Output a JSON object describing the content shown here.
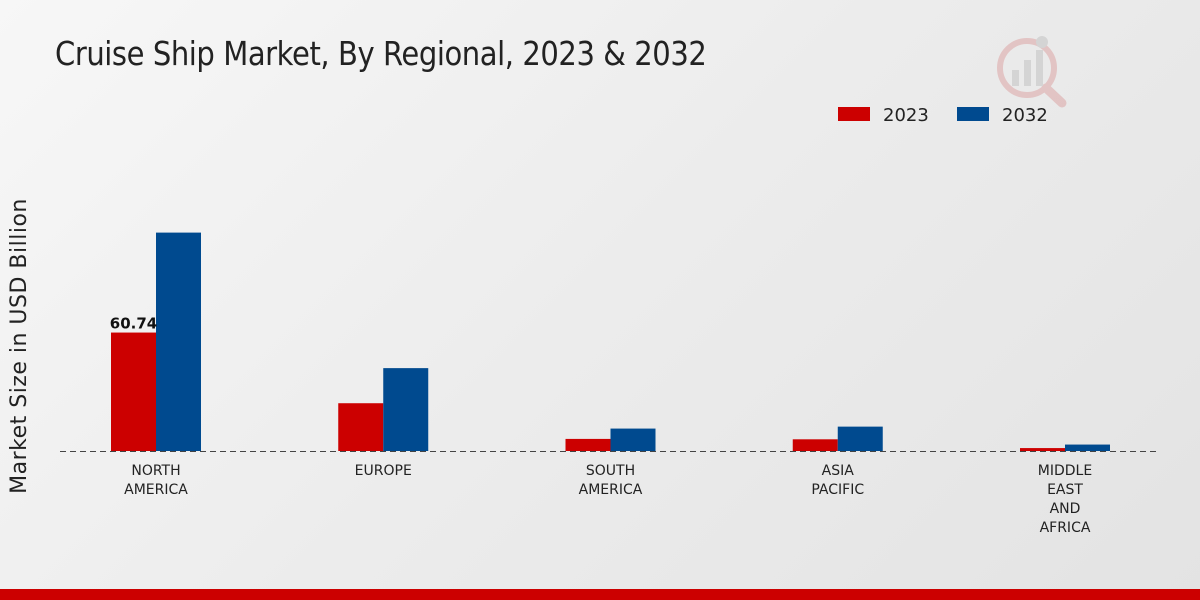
{
  "chart_data": {
    "type": "bar",
    "title": "Cruise Ship Market, By Regional, 2023 & 2032",
    "ylabel": "Market Size in USD Billion",
    "xlabel": "",
    "categories": [
      [
        "NORTH",
        "AMERICA"
      ],
      [
        "EUROPE"
      ],
      [
        "SOUTH",
        "AMERICA"
      ],
      [
        "ASIA",
        "PACIFIC"
      ],
      [
        "MIDDLE",
        "EAST",
        "AND",
        "AFRICA"
      ]
    ],
    "series": [
      {
        "name": "2023",
        "color": "#cc0000",
        "values": [
          60.74,
          24.5,
          6.2,
          6.0,
          1.5
        ]
      },
      {
        "name": "2032",
        "color": "#004a8f",
        "values": [
          112.0,
          42.5,
          11.5,
          12.5,
          3.3
        ]
      }
    ],
    "data_labels": [
      {
        "series": 0,
        "index": 0,
        "text": "60.74"
      }
    ],
    "ylim": [
      0,
      180
    ],
    "legend_position": "top-right",
    "grid": false
  }
}
